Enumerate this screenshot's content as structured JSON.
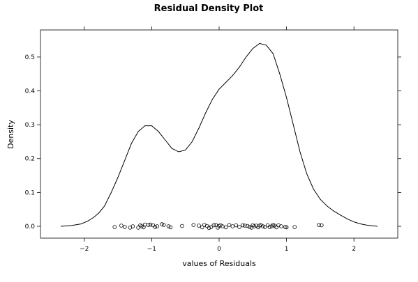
{
  "chart_data": {
    "type": "line",
    "title": "Residual Density Plot",
    "xlabel": "values of Residuals",
    "ylabel": "Density",
    "xlim": [
      -2.65,
      2.65
    ],
    "ylim": [
      -0.035,
      0.58
    ],
    "x_ticks": [
      -2,
      -1,
      0,
      1,
      2
    ],
    "x_tick_labels": [
      "−2",
      "−1",
      "0",
      "1",
      "2"
    ],
    "y_ticks": [
      0.0,
      0.1,
      0.2,
      0.3,
      0.4,
      0.5
    ],
    "y_tick_labels": [
      "0.0",
      "0.1",
      "0.2",
      "0.3",
      "0.4",
      "0.5"
    ],
    "grid": false,
    "series": [
      {
        "kind": "density-line",
        "x": [
          -2.35,
          -2.2,
          -2.05,
          -1.95,
          -1.85,
          -1.78,
          -1.7,
          -1.6,
          -1.5,
          -1.4,
          -1.3,
          -1.2,
          -1.1,
          -1.0,
          -0.9,
          -0.8,
          -0.7,
          -0.6,
          -0.5,
          -0.4,
          -0.3,
          -0.2,
          -0.1,
          0.0,
          0.1,
          0.2,
          0.3,
          0.4,
          0.5,
          0.6,
          0.7,
          0.8,
          0.9,
          1.0,
          1.1,
          1.2,
          1.3,
          1.4,
          1.5,
          1.6,
          1.7,
          1.8,
          1.9,
          2.0,
          2.1,
          2.2,
          2.35
        ],
        "y": [
          0.0,
          0.002,
          0.007,
          0.015,
          0.028,
          0.04,
          0.06,
          0.1,
          0.145,
          0.195,
          0.245,
          0.28,
          0.297,
          0.297,
          0.28,
          0.255,
          0.23,
          0.22,
          0.225,
          0.25,
          0.29,
          0.335,
          0.375,
          0.405,
          0.425,
          0.445,
          0.47,
          0.5,
          0.525,
          0.54,
          0.535,
          0.51,
          0.45,
          0.38,
          0.3,
          0.22,
          0.155,
          0.11,
          0.08,
          0.06,
          0.045,
          0.033,
          0.022,
          0.013,
          0.007,
          0.003,
          0.0
        ]
      },
      {
        "kind": "rug-points",
        "x": [
          -1.55,
          -1.45,
          -1.4,
          -1.32,
          -1.28,
          -1.2,
          -1.17,
          -1.15,
          -1.12,
          -1.1,
          -1.05,
          -1.02,
          -0.98,
          -0.95,
          -0.92,
          -0.85,
          -0.82,
          -0.75,
          -0.72,
          -0.55,
          -0.38,
          -0.3,
          -0.25,
          -0.22,
          -0.18,
          -0.15,
          -0.12,
          -0.08,
          -0.05,
          -0.02,
          0.0,
          0.02,
          0.05,
          0.1,
          0.15,
          0.2,
          0.25,
          0.3,
          0.35,
          0.38,
          0.42,
          0.45,
          0.48,
          0.5,
          0.52,
          0.55,
          0.58,
          0.6,
          0.62,
          0.65,
          0.68,
          0.72,
          0.75,
          0.78,
          0.8,
          0.82,
          0.85,
          0.88,
          0.92,
          0.98,
          1.0,
          1.12,
          1.48,
          1.52
        ],
        "y": [
          -0.002,
          0.002,
          -0.002,
          -0.004,
          0.0,
          -0.004,
          0.003,
          0.0,
          -0.003,
          0.005,
          0.004,
          0.005,
          0.003,
          -0.002,
          0.0,
          0.006,
          0.004,
          0.0,
          -0.003,
          0.001,
          0.004,
          0.002,
          -0.003,
          0.004,
          0.001,
          -0.005,
          -0.002,
          0.003,
          0.004,
          -0.004,
          0.001,
          0.003,
          0.0,
          -0.003,
          0.004,
          0.0,
          0.003,
          -0.002,
          0.003,
          0.002,
          0.001,
          -0.002,
          -0.004,
          0.003,
          0.0,
          0.002,
          -0.003,
          0.002,
          0.004,
          0.0,
          -0.002,
          0.003,
          -0.002,
          0.0,
          0.004,
          0.002,
          -0.003,
          0.003,
          0.0,
          -0.002,
          -0.003,
          -0.002,
          0.004,
          0.003
        ]
      }
    ]
  }
}
